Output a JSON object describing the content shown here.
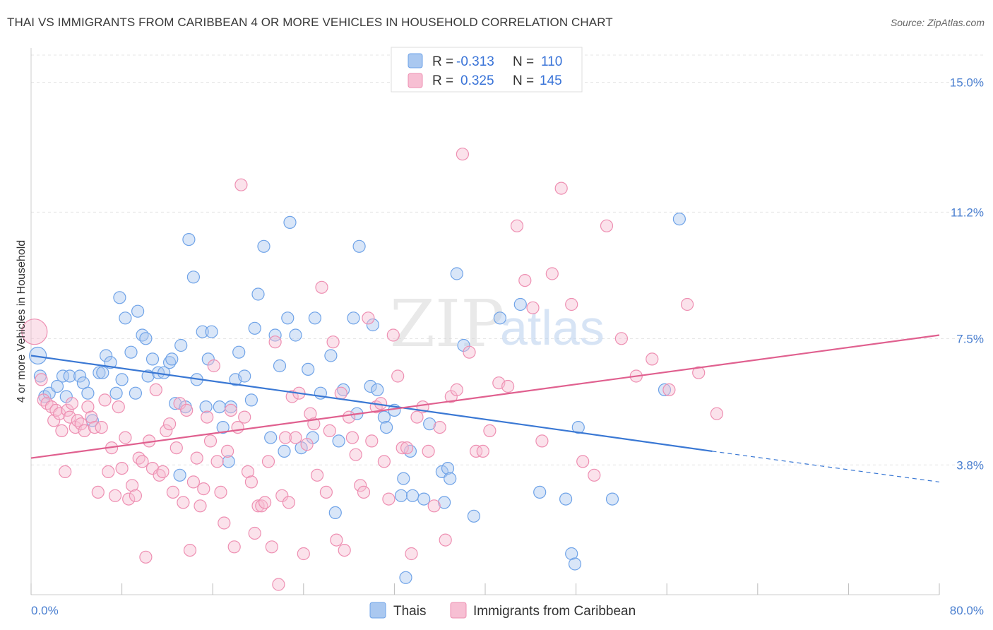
{
  "header": {
    "title": "THAI VS IMMIGRANTS FROM CARIBBEAN 4 OR MORE VEHICLES IN HOUSEHOLD CORRELATION CHART",
    "source": "Source: ZipAtlas.com"
  },
  "watermark": {
    "zip": "ZIP",
    "atlas": "atlas"
  },
  "chart_data": {
    "type": "scatter",
    "title": "THAI VS IMMIGRANTS FROM CARIBBEAN 4 OR MORE VEHICLES IN HOUSEHOLD CORRELATION CHART",
    "ylabel": "4 or more Vehicles in Household",
    "xlabel": "",
    "xlim": [
      0,
      80
    ],
    "ylim": [
      0,
      15.8
    ],
    "x_tick_labels": {
      "min": "0.0%",
      "max": "80.0%"
    },
    "y_ticks": [
      {
        "value": 3.8,
        "label": "3.8%"
      },
      {
        "value": 7.5,
        "label": "7.5%"
      },
      {
        "value": 11.2,
        "label": "11.2%"
      },
      {
        "value": 15.0,
        "label": "15.0%"
      }
    ],
    "grid": true,
    "legend_position": "top-center",
    "stats_legend": [
      {
        "r_label": "R =",
        "r_value": "-0.313",
        "n_label": "N =",
        "n_value": "110"
      },
      {
        "r_label": "R =",
        "r_value": "0.325",
        "n_label": "N =",
        "n_value": "145"
      }
    ],
    "series": [
      {
        "name": "Thais",
        "color": "#6fa3e8",
        "fill": "#aac8f0",
        "line_color": "#3a78d4",
        "trend": {
          "x0": 0,
          "y0": 7.0,
          "x1": 60,
          "y1": 4.2,
          "dash_to_x": 80,
          "dash_to_y": 3.3
        },
        "points": [
          [
            0.6,
            7.0
          ],
          [
            0.8,
            6.4
          ],
          [
            1.2,
            5.8
          ],
          [
            1.6,
            5.9
          ],
          [
            2.3,
            6.1
          ],
          [
            2.8,
            6.4
          ],
          [
            3.1,
            5.8
          ],
          [
            3.4,
            6.4
          ],
          [
            4.3,
            6.4
          ],
          [
            4.6,
            6.2
          ],
          [
            5.0,
            5.9
          ],
          [
            5.4,
            5.1
          ],
          [
            6.0,
            6.5
          ],
          [
            6.3,
            6.5
          ],
          [
            6.6,
            7.0
          ],
          [
            7.0,
            6.8
          ],
          [
            7.5,
            5.9
          ],
          [
            7.8,
            8.7
          ],
          [
            8.0,
            6.3
          ],
          [
            8.3,
            8.1
          ],
          [
            8.8,
            7.1
          ],
          [
            9.2,
            5.9
          ],
          [
            9.4,
            8.3
          ],
          [
            9.8,
            7.6
          ],
          [
            10.1,
            7.5
          ],
          [
            10.3,
            6.4
          ],
          [
            10.7,
            6.9
          ],
          [
            11.2,
            6.5
          ],
          [
            11.7,
            6.5
          ],
          [
            12.2,
            6.8
          ],
          [
            12.4,
            6.9
          ],
          [
            12.7,
            5.6
          ],
          [
            13.1,
            3.5
          ],
          [
            13.2,
            7.3
          ],
          [
            13.6,
            5.5
          ],
          [
            13.9,
            10.4
          ],
          [
            14.3,
            9.3
          ],
          [
            14.6,
            6.3
          ],
          [
            15.1,
            7.7
          ],
          [
            15.4,
            5.5
          ],
          [
            15.6,
            6.9
          ],
          [
            15.9,
            7.7
          ],
          [
            16.6,
            5.5
          ],
          [
            16.9,
            4.9
          ],
          [
            17.4,
            3.9
          ],
          [
            17.6,
            5.5
          ],
          [
            18.0,
            6.3
          ],
          [
            18.3,
            7.1
          ],
          [
            18.8,
            6.4
          ],
          [
            19.4,
            5.7
          ],
          [
            19.7,
            7.8
          ],
          [
            20.0,
            8.8
          ],
          [
            20.5,
            10.2
          ],
          [
            21.1,
            4.6
          ],
          [
            21.5,
            7.6
          ],
          [
            21.9,
            6.7
          ],
          [
            22.3,
            4.2
          ],
          [
            22.6,
            8.1
          ],
          [
            22.8,
            10.9
          ],
          [
            23.3,
            7.6
          ],
          [
            23.8,
            4.3
          ],
          [
            24.4,
            6.6
          ],
          [
            24.8,
            4.6
          ],
          [
            25.0,
            8.1
          ],
          [
            25.5,
            5.9
          ],
          [
            26.4,
            7.0
          ],
          [
            26.8,
            2.4
          ],
          [
            27.1,
            4.5
          ],
          [
            27.5,
            6.0
          ],
          [
            28.4,
            8.1
          ],
          [
            28.7,
            5.3
          ],
          [
            28.9,
            10.2
          ],
          [
            29.9,
            6.1
          ],
          [
            30.1,
            7.9
          ],
          [
            30.5,
            6.0
          ],
          [
            31.1,
            5.2
          ],
          [
            31.3,
            4.9
          ],
          [
            32.0,
            5.4
          ],
          [
            32.8,
            3.4
          ],
          [
            32.6,
            2.9
          ],
          [
            33.0,
            0.5
          ],
          [
            33.4,
            4.2
          ],
          [
            33.6,
            2.9
          ],
          [
            34.6,
            2.8
          ],
          [
            35.1,
            5.0
          ],
          [
            36.2,
            3.6
          ],
          [
            36.4,
            2.7
          ],
          [
            36.7,
            3.7
          ],
          [
            36.9,
            3.4
          ],
          [
            37.5,
            9.4
          ],
          [
            38.1,
            7.3
          ],
          [
            39.0,
            2.3
          ],
          [
            41.3,
            8.1
          ],
          [
            43.1,
            8.5
          ],
          [
            44.8,
            3.0
          ],
          [
            47.1,
            2.8
          ],
          [
            47.6,
            1.2
          ],
          [
            47.9,
            0.9
          ],
          [
            48.2,
            4.9
          ],
          [
            51.2,
            2.8
          ],
          [
            55.8,
            6.0
          ],
          [
            57.1,
            11.0
          ]
        ]
      },
      {
        "name": "Immigrants from Caribbean",
        "color": "#ee8fb2",
        "fill": "#f7bfd3",
        "line_color": "#e0608f",
        "trend": {
          "x0": 0,
          "y0": 4.0,
          "x1": 80,
          "y1": 7.6
        },
        "points": [
          [
            0.3,
            7.7
          ],
          [
            0.9,
            6.3
          ],
          [
            1.1,
            5.7
          ],
          [
            1.4,
            5.6
          ],
          [
            1.8,
            5.5
          ],
          [
            2.0,
            5.1
          ],
          [
            2.2,
            5.4
          ],
          [
            2.5,
            5.3
          ],
          [
            2.7,
            4.8
          ],
          [
            3.0,
            3.6
          ],
          [
            3.2,
            5.4
          ],
          [
            3.4,
            5.2
          ],
          [
            3.6,
            5.6
          ],
          [
            3.9,
            4.9
          ],
          [
            4.1,
            5.1
          ],
          [
            4.4,
            5.0
          ],
          [
            4.7,
            4.8
          ],
          [
            5.0,
            5.5
          ],
          [
            5.3,
            5.2
          ],
          [
            5.6,
            4.9
          ],
          [
            5.9,
            3.0
          ],
          [
            6.2,
            4.9
          ],
          [
            6.5,
            5.7
          ],
          [
            6.8,
            3.6
          ],
          [
            7.1,
            4.3
          ],
          [
            7.4,
            2.9
          ],
          [
            7.7,
            5.5
          ],
          [
            8.0,
            3.7
          ],
          [
            8.3,
            4.6
          ],
          [
            8.6,
            2.8
          ],
          [
            8.9,
            3.2
          ],
          [
            9.2,
            2.9
          ],
          [
            9.5,
            4.0
          ],
          [
            9.8,
            3.9
          ],
          [
            10.1,
            1.1
          ],
          [
            10.4,
            4.5
          ],
          [
            10.7,
            3.7
          ],
          [
            11.0,
            6.0
          ],
          [
            11.3,
            3.5
          ],
          [
            11.6,
            3.6
          ],
          [
            11.9,
            4.8
          ],
          [
            12.2,
            5.0
          ],
          [
            12.5,
            3.0
          ],
          [
            12.8,
            4.3
          ],
          [
            13.1,
            5.6
          ],
          [
            13.4,
            2.7
          ],
          [
            13.7,
            5.4
          ],
          [
            14.0,
            1.3
          ],
          [
            14.3,
            3.3
          ],
          [
            14.6,
            4.0
          ],
          [
            14.9,
            2.6
          ],
          [
            15.2,
            3.1
          ],
          [
            15.5,
            5.2
          ],
          [
            15.8,
            4.5
          ],
          [
            16.1,
            6.7
          ],
          [
            16.4,
            3.9
          ],
          [
            16.7,
            3.0
          ],
          [
            17.0,
            2.1
          ],
          [
            17.3,
            4.2
          ],
          [
            17.6,
            5.4
          ],
          [
            17.9,
            1.4
          ],
          [
            18.2,
            4.9
          ],
          [
            18.5,
            12.0
          ],
          [
            18.8,
            5.2
          ],
          [
            19.1,
            3.6
          ],
          [
            19.4,
            3.3
          ],
          [
            19.7,
            1.8
          ],
          [
            20.0,
            2.6
          ],
          [
            20.3,
            2.6
          ],
          [
            20.6,
            2.7
          ],
          [
            20.9,
            3.9
          ],
          [
            21.2,
            1.4
          ],
          [
            21.5,
            7.4
          ],
          [
            21.8,
            0.3
          ],
          [
            22.1,
            2.9
          ],
          [
            22.4,
            4.6
          ],
          [
            22.7,
            2.7
          ],
          [
            23.0,
            5.8
          ],
          [
            23.3,
            4.6
          ],
          [
            23.6,
            5.9
          ],
          [
            24.0,
            1.2
          ],
          [
            24.3,
            4.4
          ],
          [
            24.6,
            5.3
          ],
          [
            24.9,
            5.0
          ],
          [
            25.2,
            3.5
          ],
          [
            25.6,
            9.0
          ],
          [
            26.0,
            3.0
          ],
          [
            26.3,
            4.8
          ],
          [
            26.6,
            7.4
          ],
          [
            26.9,
            1.6
          ],
          [
            27.3,
            5.9
          ],
          [
            27.6,
            1.3
          ],
          [
            28.0,
            5.2
          ],
          [
            28.3,
            4.6
          ],
          [
            28.6,
            4.1
          ],
          [
            29.0,
            3.2
          ],
          [
            29.3,
            3.0
          ],
          [
            29.7,
            8.1
          ],
          [
            30.0,
            4.5
          ],
          [
            30.4,
            5.5
          ],
          [
            30.8,
            5.6
          ],
          [
            31.1,
            3.9
          ],
          [
            31.5,
            2.8
          ],
          [
            31.9,
            7.6
          ],
          [
            32.3,
            6.4
          ],
          [
            32.7,
            4.3
          ],
          [
            33.1,
            4.3
          ],
          [
            33.5,
            1.2
          ],
          [
            34.0,
            5.2
          ],
          [
            34.5,
            5.5
          ],
          [
            35.0,
            4.2
          ],
          [
            35.5,
            2.6
          ],
          [
            36.0,
            4.9
          ],
          [
            36.5,
            1.6
          ],
          [
            37.0,
            5.8
          ],
          [
            37.5,
            6.0
          ],
          [
            38.0,
            12.9
          ],
          [
            38.6,
            7.1
          ],
          [
            39.2,
            4.2
          ],
          [
            39.8,
            4.2
          ],
          [
            40.4,
            4.8
          ],
          [
            41.2,
            6.2
          ],
          [
            42.0,
            6.1
          ],
          [
            42.8,
            10.8
          ],
          [
            43.5,
            9.2
          ],
          [
            44.2,
            8.4
          ],
          [
            45.0,
            4.5
          ],
          [
            45.9,
            9.4
          ],
          [
            46.7,
            11.9
          ],
          [
            47.6,
            8.5
          ],
          [
            48.6,
            3.9
          ],
          [
            49.6,
            3.5
          ],
          [
            50.7,
            10.8
          ],
          [
            52.0,
            7.5
          ],
          [
            53.3,
            6.4
          ],
          [
            54.7,
            6.9
          ],
          [
            56.2,
            6.0
          ],
          [
            57.8,
            8.5
          ],
          [
            58.8,
            6.5
          ],
          [
            60.4,
            5.3
          ]
        ]
      }
    ]
  }
}
